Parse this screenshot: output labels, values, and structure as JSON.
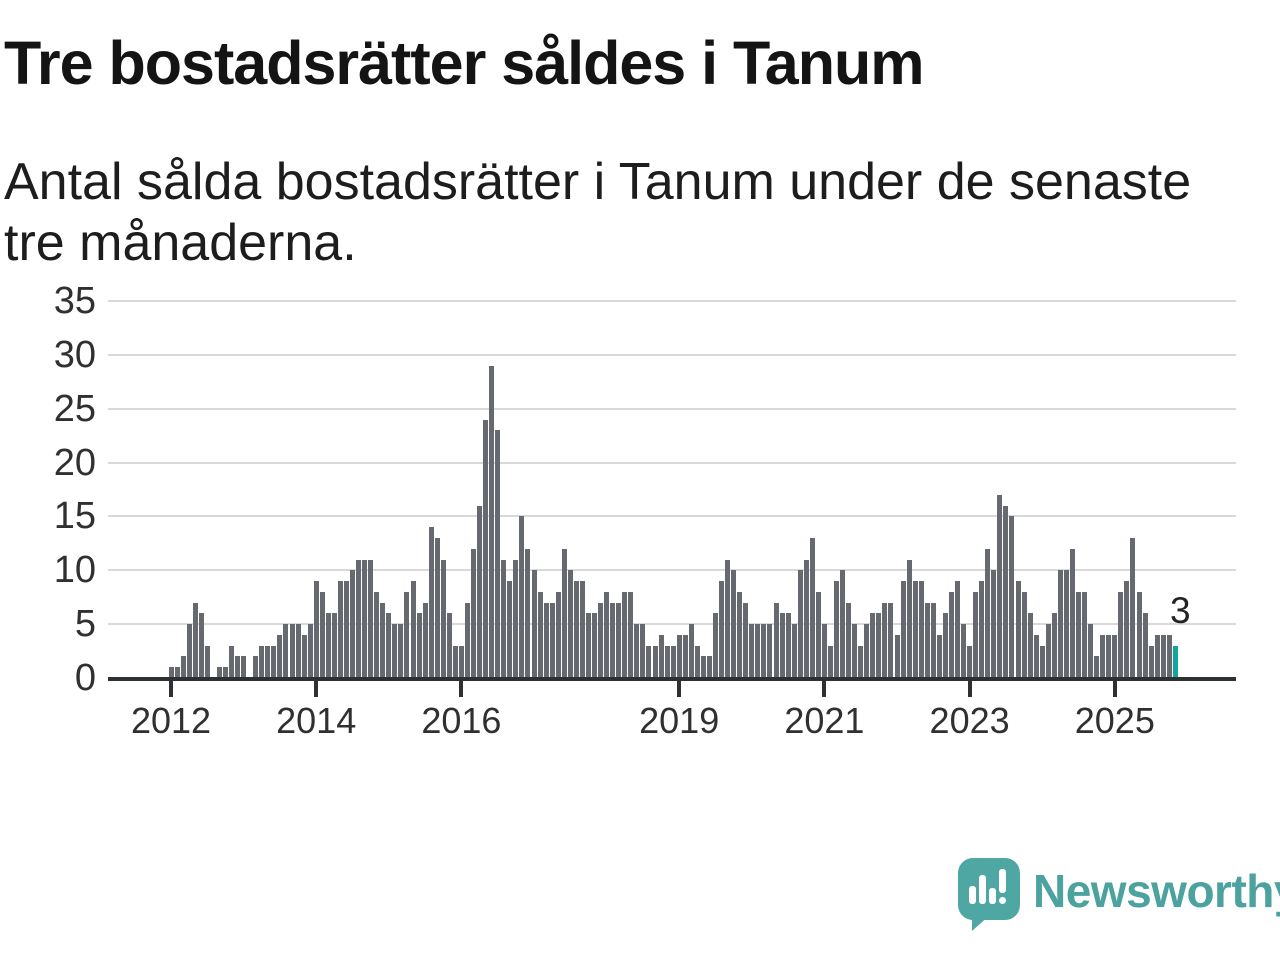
{
  "title": "Tre bostadsrätter såldes i Tanum",
  "subtitle": "Antal sålda bostadsrätter i Tanum under de senaste tre månaderna.",
  "chart_data": {
    "type": "bar",
    "title": "Tre bostadsrätter såldes i Tanum",
    "xlabel": "",
    "ylabel": "",
    "x_start": "2012-01",
    "x_end": "2025-11",
    "x_unit": "month",
    "values": [
      1,
      1,
      2,
      5,
      7,
      6,
      3,
      0,
      1,
      1,
      3,
      2,
      2,
      0,
      2,
      3,
      3,
      3,
      4,
      5,
      5,
      5,
      4,
      5,
      9,
      8,
      6,
      6,
      9,
      9,
      10,
      11,
      11,
      11,
      8,
      7,
      6,
      5,
      5,
      8,
      9,
      6,
      7,
      14,
      13,
      11,
      6,
      3,
      3,
      7,
      12,
      16,
      24,
      29,
      23,
      11,
      9,
      11,
      15,
      12,
      10,
      8,
      7,
      7,
      8,
      12,
      10,
      9,
      9,
      6,
      6,
      7,
      8,
      7,
      7,
      8,
      8,
      5,
      5,
      3,
      3,
      4,
      3,
      3,
      4,
      4,
      5,
      3,
      2,
      2,
      6,
      9,
      11,
      10,
      8,
      7,
      5,
      5,
      5,
      5,
      7,
      6,
      6,
      5,
      10,
      11,
      13,
      8,
      5,
      3,
      9,
      10,
      7,
      5,
      3,
      5,
      6,
      6,
      7,
      7,
      4,
      9,
      11,
      9,
      9,
      7,
      7,
      4,
      6,
      8,
      9,
      5,
      3,
      8,
      9,
      12,
      10,
      17,
      16,
      15,
      9,
      8,
      6,
      4,
      3,
      5,
      6,
      10,
      10,
      12,
      8,
      8,
      5,
      2,
      4,
      4,
      4,
      8,
      9,
      13,
      8,
      6,
      3,
      4,
      4,
      4,
      3
    ],
    "ylim": [
      0,
      35
    ],
    "y_ticks": [
      0,
      5,
      10,
      15,
      20,
      25,
      30,
      35
    ],
    "y_tick_labels": [
      "0",
      "5",
      "10",
      "15",
      "20",
      "25",
      "30",
      "35"
    ],
    "x_tick_labels": [
      "2012",
      "2014",
      "2016",
      "2019",
      "2021",
      "2023",
      "2025"
    ],
    "x_tick_month_index": [
      0,
      24,
      48,
      84,
      108,
      132,
      156
    ],
    "grid": true,
    "legend": "none",
    "bar_color": "#66696f",
    "highlight_last_bar": true,
    "highlight_color": "#12a49e",
    "last_value_label": "3",
    "last_value": 3
  },
  "logo": {
    "text": "Newsworthy",
    "icon": "speech-bubble-bar-chart-icon",
    "color": "#4ba29e"
  },
  "colors": {
    "background": "#ffffff",
    "title_text": "#141414",
    "body_text": "#1d1d1d",
    "axis": "#2e3134",
    "gridline": "#d9d9d9",
    "tick_label": "#303030",
    "bar": "#66696f",
    "highlight": "#12a49e",
    "logo_teal": "#4ba29e"
  }
}
